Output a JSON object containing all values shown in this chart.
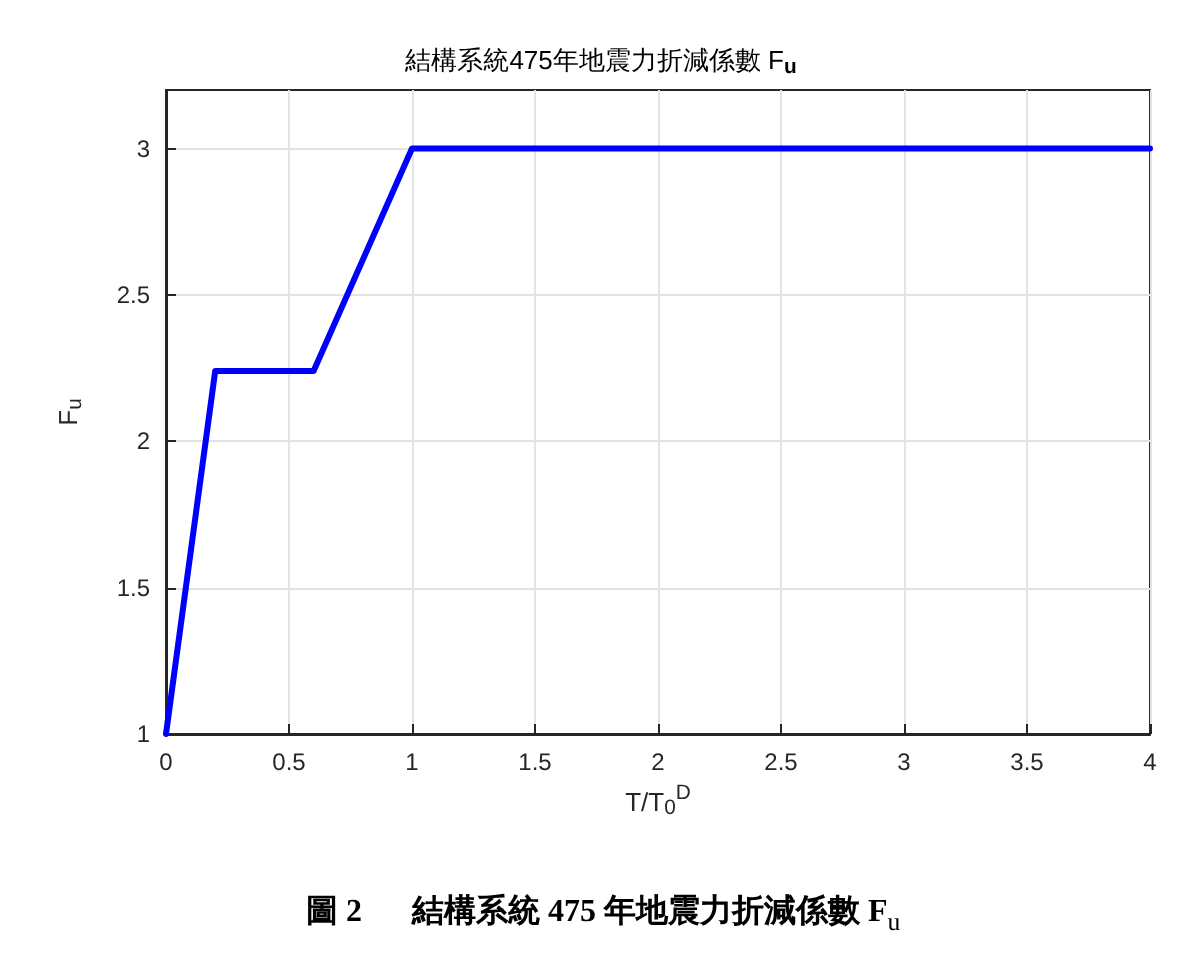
{
  "chart_data": {
    "type": "line",
    "title": "結構系統475年地震力折減係數 F$_{u}$",
    "xlabel": "T/T$_{0}$$^{D}$",
    "ylabel": "F$_{u}$",
    "annotations": [
      "圖 2",
      "結構系統 475 年地震力折減係數 F$_{u}$"
    ],
    "x": [
      0,
      0.2,
      0.6,
      1,
      4
    ],
    "series": [
      {
        "color": "#0000ff",
        "values": [
          1,
          2.24,
          2.24,
          3,
          3
        ]
      }
    ],
    "xlim": [
      0,
      4
    ],
    "xticks": [
      0,
      0.5,
      1,
      1.5,
      2,
      2.5,
      3,
      3.5,
      4
    ],
    "ylim": [
      1,
      3.2
    ],
    "yticks": [
      1,
      1.5,
      2,
      2.5,
      3
    ],
    "grid": true,
    "marker": "none",
    "line_style": "solid"
  }
}
